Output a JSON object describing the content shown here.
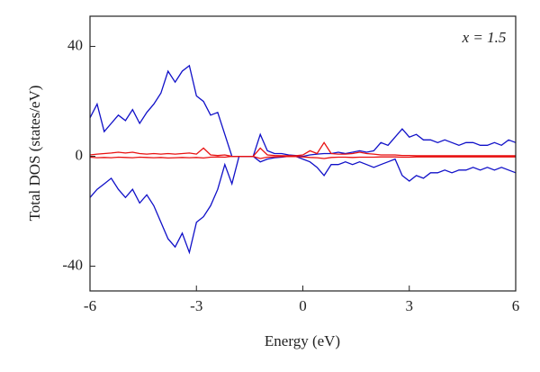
{
  "chart_data": {
    "type": "line",
    "xlabel": "Energy (eV)",
    "ylabel": "Total DOS (states/eV)",
    "annotation": "x = 1.5",
    "x": [
      -6,
      -5.8,
      -5.6,
      -5.4,
      -5.2,
      -5,
      -4.8,
      -4.6,
      -4.4,
      -4.2,
      -4,
      -3.8,
      -3.6,
      -3.4,
      -3.2,
      -3,
      -2.8,
      -2.6,
      -2.4,
      -2.2,
      -2,
      -1.8,
      -1.6,
      -1.4,
      -1.2,
      -1,
      -0.8,
      -0.6,
      -0.4,
      -0.2,
      0,
      0.2,
      0.4,
      0.6,
      0.8,
      1,
      1.2,
      1.4,
      1.6,
      1.8,
      2,
      2.2,
      2.4,
      2.6,
      2.8,
      3,
      3.2,
      3.4,
      3.6,
      3.8,
      4,
      4.2,
      4.4,
      4.6,
      4.8,
      5,
      5.2,
      5.4,
      5.6,
      5.8,
      6
    ],
    "series": [
      {
        "color": "#1010c8",
        "values": [
          14,
          19,
          9,
          12,
          15,
          13,
          17,
          12,
          16,
          19,
          23,
          31,
          27,
          31,
          33,
          22,
          20,
          15,
          16,
          8,
          0,
          0,
          0,
          0,
          8,
          2,
          1,
          1,
          0.5,
          0.3,
          0,
          0.5,
          0.8,
          1,
          1,
          1.5,
          1,
          1.5,
          2,
          1.5,
          2,
          5,
          4,
          7,
          10,
          7,
          8,
          6,
          6,
          5,
          6,
          5,
          4,
          5,
          5,
          4,
          4,
          5,
          4,
          6,
          5
        ]
      },
      {
        "color": "#1010c8",
        "values": [
          -15,
          -12,
          -10,
          -8,
          -12,
          -15,
          -12,
          -17,
          -14,
          -18,
          -24,
          -30,
          -33,
          -28,
          -35,
          -24,
          -22,
          -18,
          -12,
          -3,
          -10,
          0,
          0,
          0,
          -2,
          -1,
          -0.5,
          -0.3,
          0,
          0,
          -1,
          -2,
          -4,
          -7,
          -3,
          -3,
          -2,
          -3,
          -2,
          -3,
          -4,
          -3,
          -2,
          -1,
          -7,
          -9,
          -7,
          -8,
          -6,
          -6,
          -5,
          -6,
          -5,
          -5,
          -4,
          -5,
          -4,
          -5,
          -4,
          -5,
          -6
        ]
      },
      {
        "color": "#e81010",
        "values": [
          0.5,
          0.8,
          1,
          1.2,
          1.5,
          1.2,
          1.5,
          1,
          0.8,
          1,
          0.8,
          1,
          0.8,
          1,
          1.2,
          0.8,
          3,
          0.5,
          0.3,
          0.5,
          0,
          0,
          0,
          0,
          3,
          0.5,
          0.3,
          0.2,
          0.2,
          0.2,
          0.5,
          2,
          1,
          5,
          1,
          0.8,
          0.8,
          1,
          1.5,
          1,
          0.8,
          0.5,
          0.5,
          0.5,
          0.3,
          0.3,
          0.2,
          0.2,
          0.2,
          0.2,
          0.2,
          0.2,
          0.2,
          0.2,
          0.2,
          0.2,
          0.2,
          0.2,
          0.2,
          0.2,
          0.2
        ]
      },
      {
        "color": "#e81010",
        "values": [
          -0.3,
          -0.5,
          -0.4,
          -0.5,
          -0.3,
          -0.4,
          -0.5,
          -0.3,
          -0.4,
          -0.5,
          -0.4,
          -0.6,
          -0.5,
          -0.4,
          -0.5,
          -0.4,
          -0.6,
          -0.3,
          -0.2,
          -0.3,
          0,
          0,
          0,
          0,
          -0.8,
          -0.3,
          -0.2,
          -0.1,
          -0.1,
          -0.1,
          -0.2,
          -0.4,
          -0.5,
          -0.8,
          -0.4,
          -0.3,
          -0.3,
          -0.4,
          -0.3,
          -0.3,
          -0.3,
          -0.2,
          -0.2,
          -0.2,
          -0.3,
          -0.3,
          -0.2,
          -0.2,
          -0.2,
          -0.2,
          -0.2,
          -0.2,
          -0.2,
          -0.2,
          -0.2,
          -0.2,
          -0.2,
          -0.2,
          -0.2,
          -0.2,
          -0.2
        ]
      }
    ],
    "xlim": [
      -6,
      6
    ],
    "xticks": [
      -6,
      -3,
      0,
      3,
      6
    ],
    "ylim": [
      -49,
      51
    ],
    "yticks": [
      -40,
      0,
      40
    ]
  }
}
